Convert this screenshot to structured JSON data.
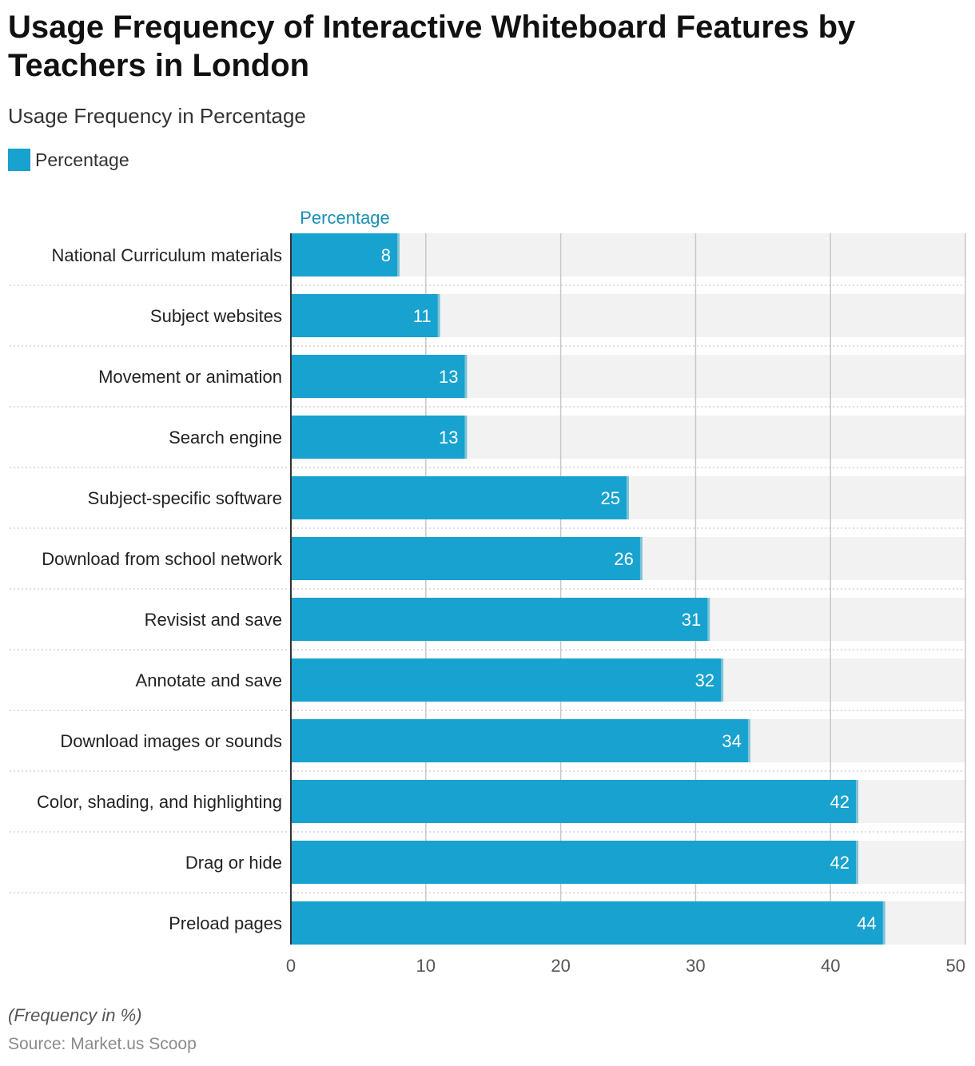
{
  "title": "Usage Frequency of Interactive Whiteboard Features by Teachers in London",
  "subtitle": "Usage Frequency in Percentage",
  "legend": {
    "label": "Percentage",
    "color": "#18a2cf"
  },
  "footnote": "(Frequency in %)",
  "source": "Source: Market.us Scoop",
  "chart_data": {
    "type": "bar",
    "orientation": "horizontal",
    "series_header": "Percentage",
    "categories": [
      "National Curriculum materials",
      "Subject websites",
      "Movement or animation",
      "Search engine",
      "Subject-specific software",
      "Download from school network",
      "Revisist and save",
      "Annotate and save",
      "Download images or sounds",
      "Color, shading, and highlighting",
      "Drag or hide",
      "Preload pages"
    ],
    "series": [
      {
        "name": "Percentage",
        "values": [
          8,
          11,
          13,
          13,
          25,
          26,
          31,
          32,
          34,
          42,
          42,
          44
        ]
      }
    ],
    "xlim": [
      0,
      50
    ],
    "xticks": [
      0,
      10,
      20,
      30,
      40,
      50
    ],
    "grid": true,
    "legend_position": "top-left",
    "colors": {
      "bar": "#18a2cf",
      "bar_edge": "#7fc3d6",
      "track": "#f2f2f2",
      "grid": "#c8c8c8"
    }
  }
}
